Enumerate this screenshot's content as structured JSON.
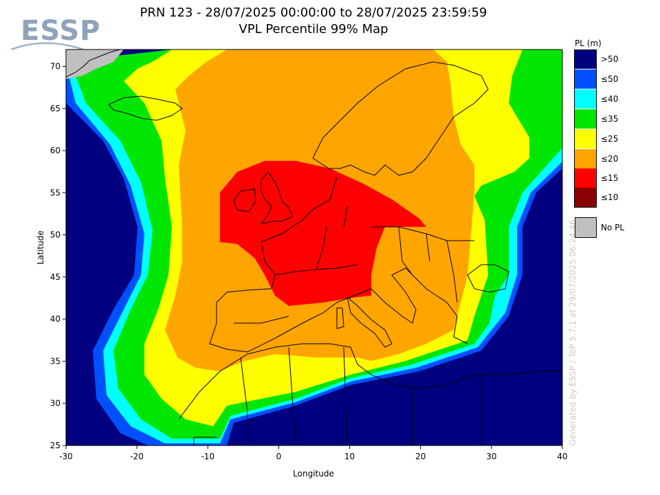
{
  "logo": {
    "text": "ESSP"
  },
  "title": {
    "line1": "PRN 123 - 28/07/2025 00:00:00 to 28/07/2025 23:59:59",
    "line2": "VPL Percentile 99% Map"
  },
  "axes": {
    "xlabel": "Longitude",
    "ylabel": "Latitude",
    "xlim": [
      -30,
      40
    ],
    "ylim": [
      25,
      72
    ],
    "xticks": [
      "-30",
      "-20",
      "-10",
      "0",
      "10",
      "20",
      "30",
      "40"
    ],
    "yticks": [
      "25",
      "30",
      "35",
      "40",
      "45",
      "50",
      "55",
      "60",
      "65",
      "70"
    ]
  },
  "generated_note": "Generated by ESSP / TeP 5.7.1 at 29/07/2025 06:24:46",
  "legend": {
    "title": "PL (m)",
    "items": [
      {
        "label": ">50",
        "color": "#000080"
      },
      {
        "label": "≤50",
        "color": "#0050ff"
      },
      {
        "label": "≤40",
        "color": "#00ffff"
      },
      {
        "label": "≤35",
        "color": "#00e600"
      },
      {
        "label": "≤25",
        "color": "#ffff00"
      },
      {
        "label": "≤20",
        "color": "#ffa500"
      },
      {
        "label": "≤15",
        "color": "#ff0000"
      },
      {
        "label": "≤10",
        "color": "#8b0000"
      }
    ],
    "no_pl": {
      "label": "No PL",
      "color": "#c0c0c0"
    }
  },
  "chart_data": {
    "type": "heatmap",
    "title": "VPL Percentile 99% Map",
    "xlabel": "Longitude",
    "ylabel": "Latitude",
    "xlim": [
      -30,
      40
    ],
    "ylim": [
      25,
      72
    ],
    "regions": [
      {
        "band": ">50",
        "color": "#000080",
        "coverage": "outer ocean (west Atlantic, far south, far east)"
      },
      {
        "band": "≤50",
        "color": "#0050ff",
        "coverage": "thin ring inside the >50 zone"
      },
      {
        "band": "≤40",
        "color": "#00ffff",
        "coverage": "thin ring"
      },
      {
        "band": "≤35",
        "color": "#00e600",
        "coverage": "ring around western Europe and eastern edge"
      },
      {
        "band": "≤25",
        "color": "#ffff00",
        "coverage": "wide band around central area"
      },
      {
        "band": "≤20",
        "color": "#ffa500",
        "coverage": "most of Europe and near-Atlantic"
      },
      {
        "band": "≤15",
        "color": "#ff0000",
        "coverage": "central core over UK, France, Germany"
      },
      {
        "band": "No PL",
        "color": "#c0c0c0",
        "coverage": "north-west corner"
      }
    ]
  }
}
